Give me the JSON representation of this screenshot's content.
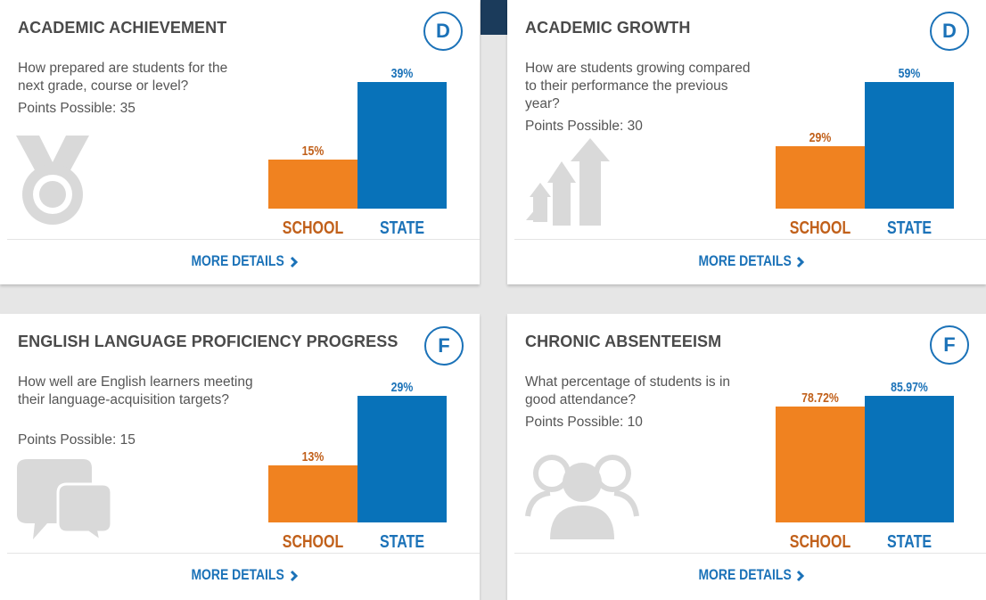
{
  "cards": [
    {
      "title": "ACADEMIC ACHIEVEMENT",
      "grade": "D",
      "question": "How prepared are students for the next grade, course or level?",
      "points": "Points Possible: 35",
      "icon": "medal-icon",
      "more_label": "MORE DETAILS",
      "chart_data": {
        "type": "bar",
        "categories": [
          "SCHOOL",
          "STATE"
        ],
        "values": [
          15,
          39
        ],
        "value_labels": [
          "15%",
          "39%"
        ],
        "ylim": [
          0,
          39
        ]
      }
    },
    {
      "title": "ACADEMIC GROWTH",
      "grade": "D",
      "question": "How are students growing compared to their performance the previous year?",
      "points": "Points Possible: 30",
      "icon": "growth-arrows-icon",
      "more_label": "MORE DETAILS",
      "chart_data": {
        "type": "bar",
        "categories": [
          "SCHOOL",
          "STATE"
        ],
        "values": [
          29,
          59
        ],
        "value_labels": [
          "29%",
          "59%"
        ],
        "ylim": [
          0,
          59
        ]
      }
    },
    {
      "title": "ENGLISH LANGUAGE PROFICIENCY PROGRESS",
      "grade": "F",
      "question": "How well are English learners meeting their language-acquisition targets?",
      "points": "Points Possible: 15",
      "icon": "chat-bubbles-icon",
      "more_label": "MORE DETAILS",
      "chart_data": {
        "type": "bar",
        "categories": [
          "SCHOOL",
          "STATE"
        ],
        "values": [
          13,
          29
        ],
        "value_labels": [
          "13%",
          "29%"
        ],
        "ylim": [
          0,
          29
        ]
      }
    },
    {
      "title": "CHRONIC ABSENTEEISM",
      "grade": "F",
      "question": "What percentage of students is in good attendance?",
      "points": "Points Possible: 10",
      "icon": "people-icon",
      "more_label": "MORE DETAILS",
      "chart_data": {
        "type": "bar",
        "categories": [
          "SCHOOL",
          "STATE"
        ],
        "values": [
          78.72,
          85.97
        ],
        "value_labels": [
          "78.72%",
          "85.97%"
        ],
        "ylim": [
          0,
          85.97
        ]
      }
    }
  ],
  "colors": {
    "school": "#f08220",
    "state": "#0872b9",
    "accent": "#1b72b8",
    "icon_gray": "#d9d9d9"
  }
}
